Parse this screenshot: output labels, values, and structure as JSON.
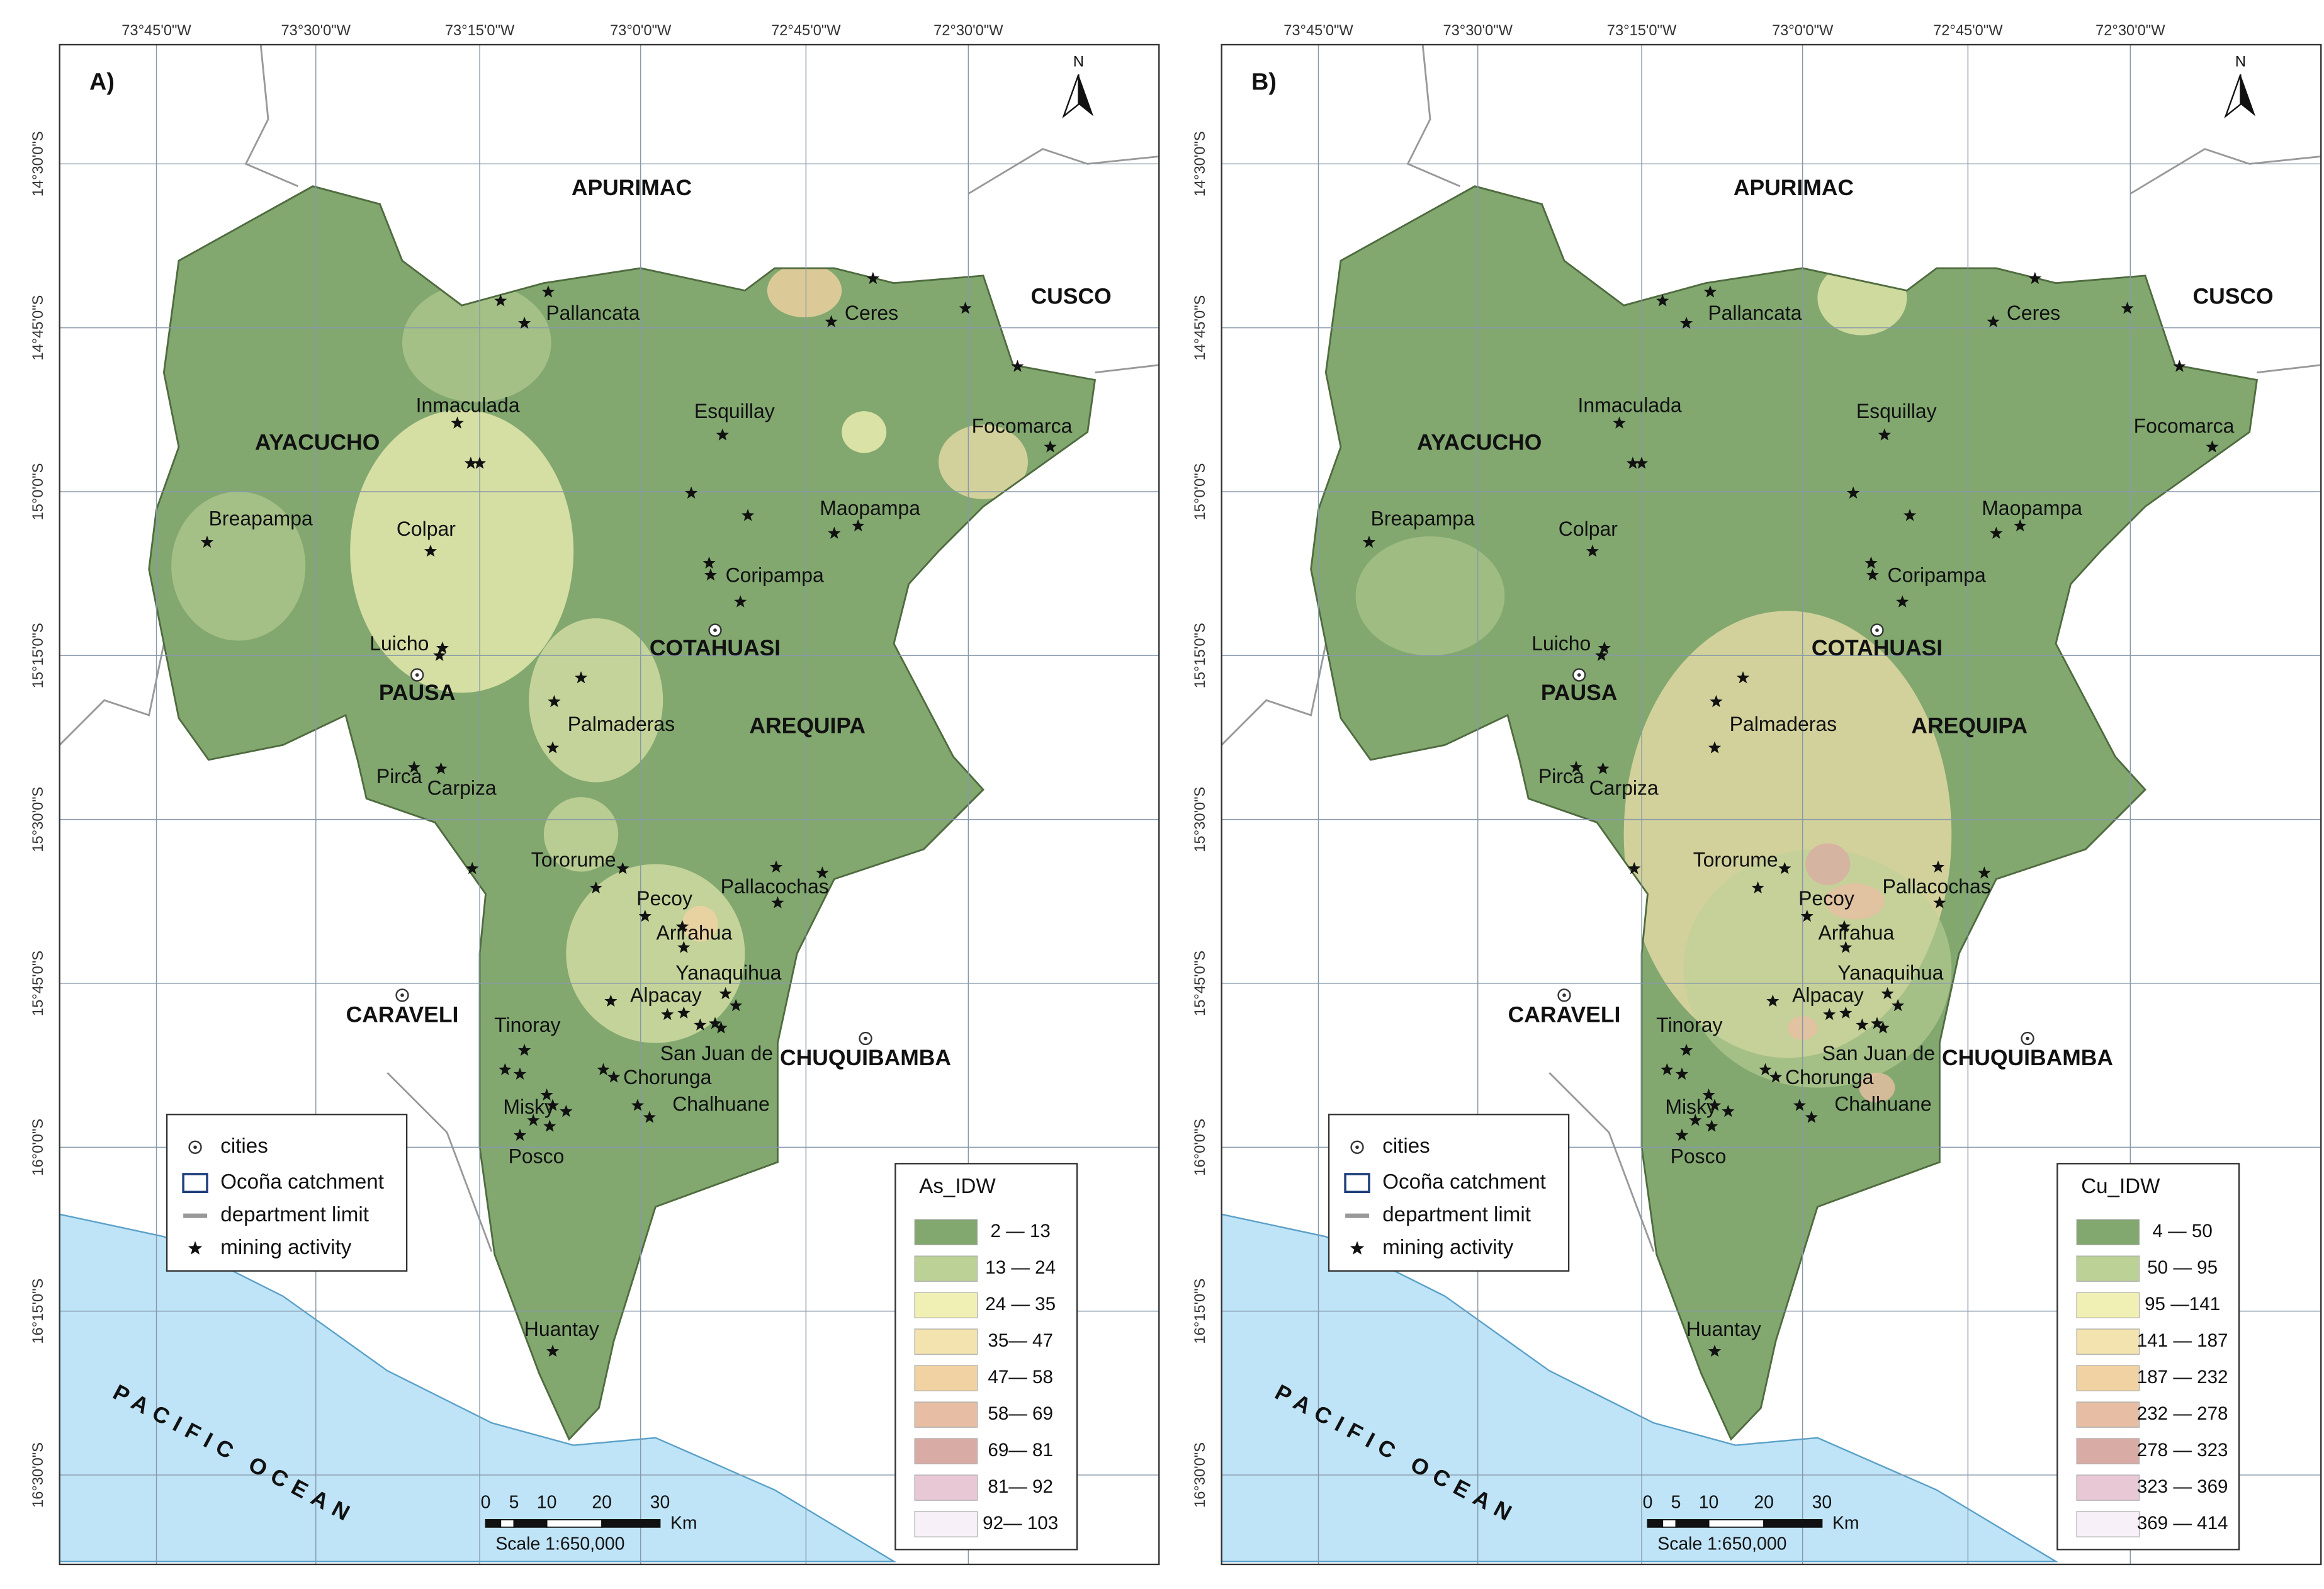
{
  "panels": [
    {
      "label": "A)",
      "north": "N",
      "lon_ticks": [
        "73°45'0\"W",
        "73°30'0\"W",
        "73°15'0\"W",
        "73°0'0\"W",
        "72°45'0\"W",
        "72°30'0\"W"
      ],
      "lat_ticks": [
        "14°30'0\"S",
        "14°45'0\"S",
        "15°0'0\"S",
        "15°15'0\"S",
        "15°30'0\"S",
        "15°45'0\"S",
        "16°0'0\"S",
        "16°15'0\"S",
        "16°30'0\"S"
      ],
      "regions": [
        "APURIMAC",
        "CUSCO",
        "AYACUCHO",
        "COTAHUASI",
        "PAUSA",
        "AREQUIPA",
        "CARAVELI",
        "CHUQUIBAMBA"
      ],
      "places": [
        "Pallancata",
        "Ceres",
        "Inmaculada",
        "Esquillay",
        "Focomarca",
        "Breapampa",
        "Colpar",
        "Maopampa",
        "Coripampa",
        "Luicho",
        "Palmaderas",
        "Pirca",
        "Carpiza",
        "Tororume",
        "Pecoy",
        "Pallacochas",
        "Arirahua",
        "Yanaquihua",
        "Alpacay",
        "Tinoray",
        "San Juan de",
        "Chorunga",
        "Misky",
        "Chalhuane",
        "Posco",
        "Huantay"
      ],
      "ocean": "PACIFIC OCEAN",
      "legend": [
        "cities",
        "Ocoña catchment",
        "department limit",
        "mining activity"
      ],
      "scale": {
        "ticks": [
          "0",
          "5",
          "10",
          "20",
          "30"
        ],
        "unit": "Km",
        "text": "Scale 1:650,000"
      },
      "class_legend": {
        "title": "As_IDW",
        "classes": [
          "2 — 13",
          "13 — 24",
          "24 — 35",
          "35— 47",
          "47— 58",
          "58— 69",
          "69— 81",
          "81— 92",
          "92— 103"
        ]
      }
    },
    {
      "label": "B)",
      "north": "N",
      "lon_ticks": [
        "73°45'0\"W",
        "73°30'0\"W",
        "73°15'0\"W",
        "73°0'0\"W",
        "72°45'0\"W",
        "72°30'0\"W"
      ],
      "lat_ticks": [
        "14°30'0\"S",
        "14°45'0\"S",
        "15°0'0\"S",
        "15°15'0\"S",
        "15°30'0\"S",
        "15°45'0\"S",
        "16°0'0\"S",
        "16°15'0\"S",
        "16°30'0\"S"
      ],
      "regions": [
        "APURIMAC",
        "CUSCO",
        "AYACUCHO",
        "COTAHUASI",
        "PAUSA",
        "AREQUIPA",
        "CARAVELI",
        "CHUQUIBAMBA"
      ],
      "places": [
        "Pallancata",
        "Ceres",
        "Inmaculada",
        "Esquillay",
        "Focomarca",
        "Breapampa",
        "Colpar",
        "Maopampa",
        "Coripampa",
        "Luicho",
        "Palmaderas",
        "Pirca",
        "Carpiza",
        "Tororume",
        "Pecoy",
        "Pallacochas",
        "Arirahua",
        "Yanaquihua",
        "Alpacay",
        "Tinoray",
        "San Juan de",
        "Chorunga",
        "Misky",
        "Chalhuane",
        "Posco",
        "Huantay"
      ],
      "ocean": "PACIFIC OCEAN",
      "legend": [
        "cities",
        "Ocoña catchment",
        "department limit",
        "mining activity"
      ],
      "scale": {
        "ticks": [
          "0",
          "5",
          "10",
          "20",
          "30"
        ],
        "unit": "Km",
        "text": "Scale 1:650,000"
      },
      "class_legend": {
        "title": "Cu_IDW",
        "classes": [
          "4 — 50",
          "50 — 95",
          "95 —141",
          "141 — 187",
          "187 — 232",
          "232 — 278",
          "278 — 323",
          "323 — 369",
          "369 — 414"
        ]
      }
    }
  ]
}
